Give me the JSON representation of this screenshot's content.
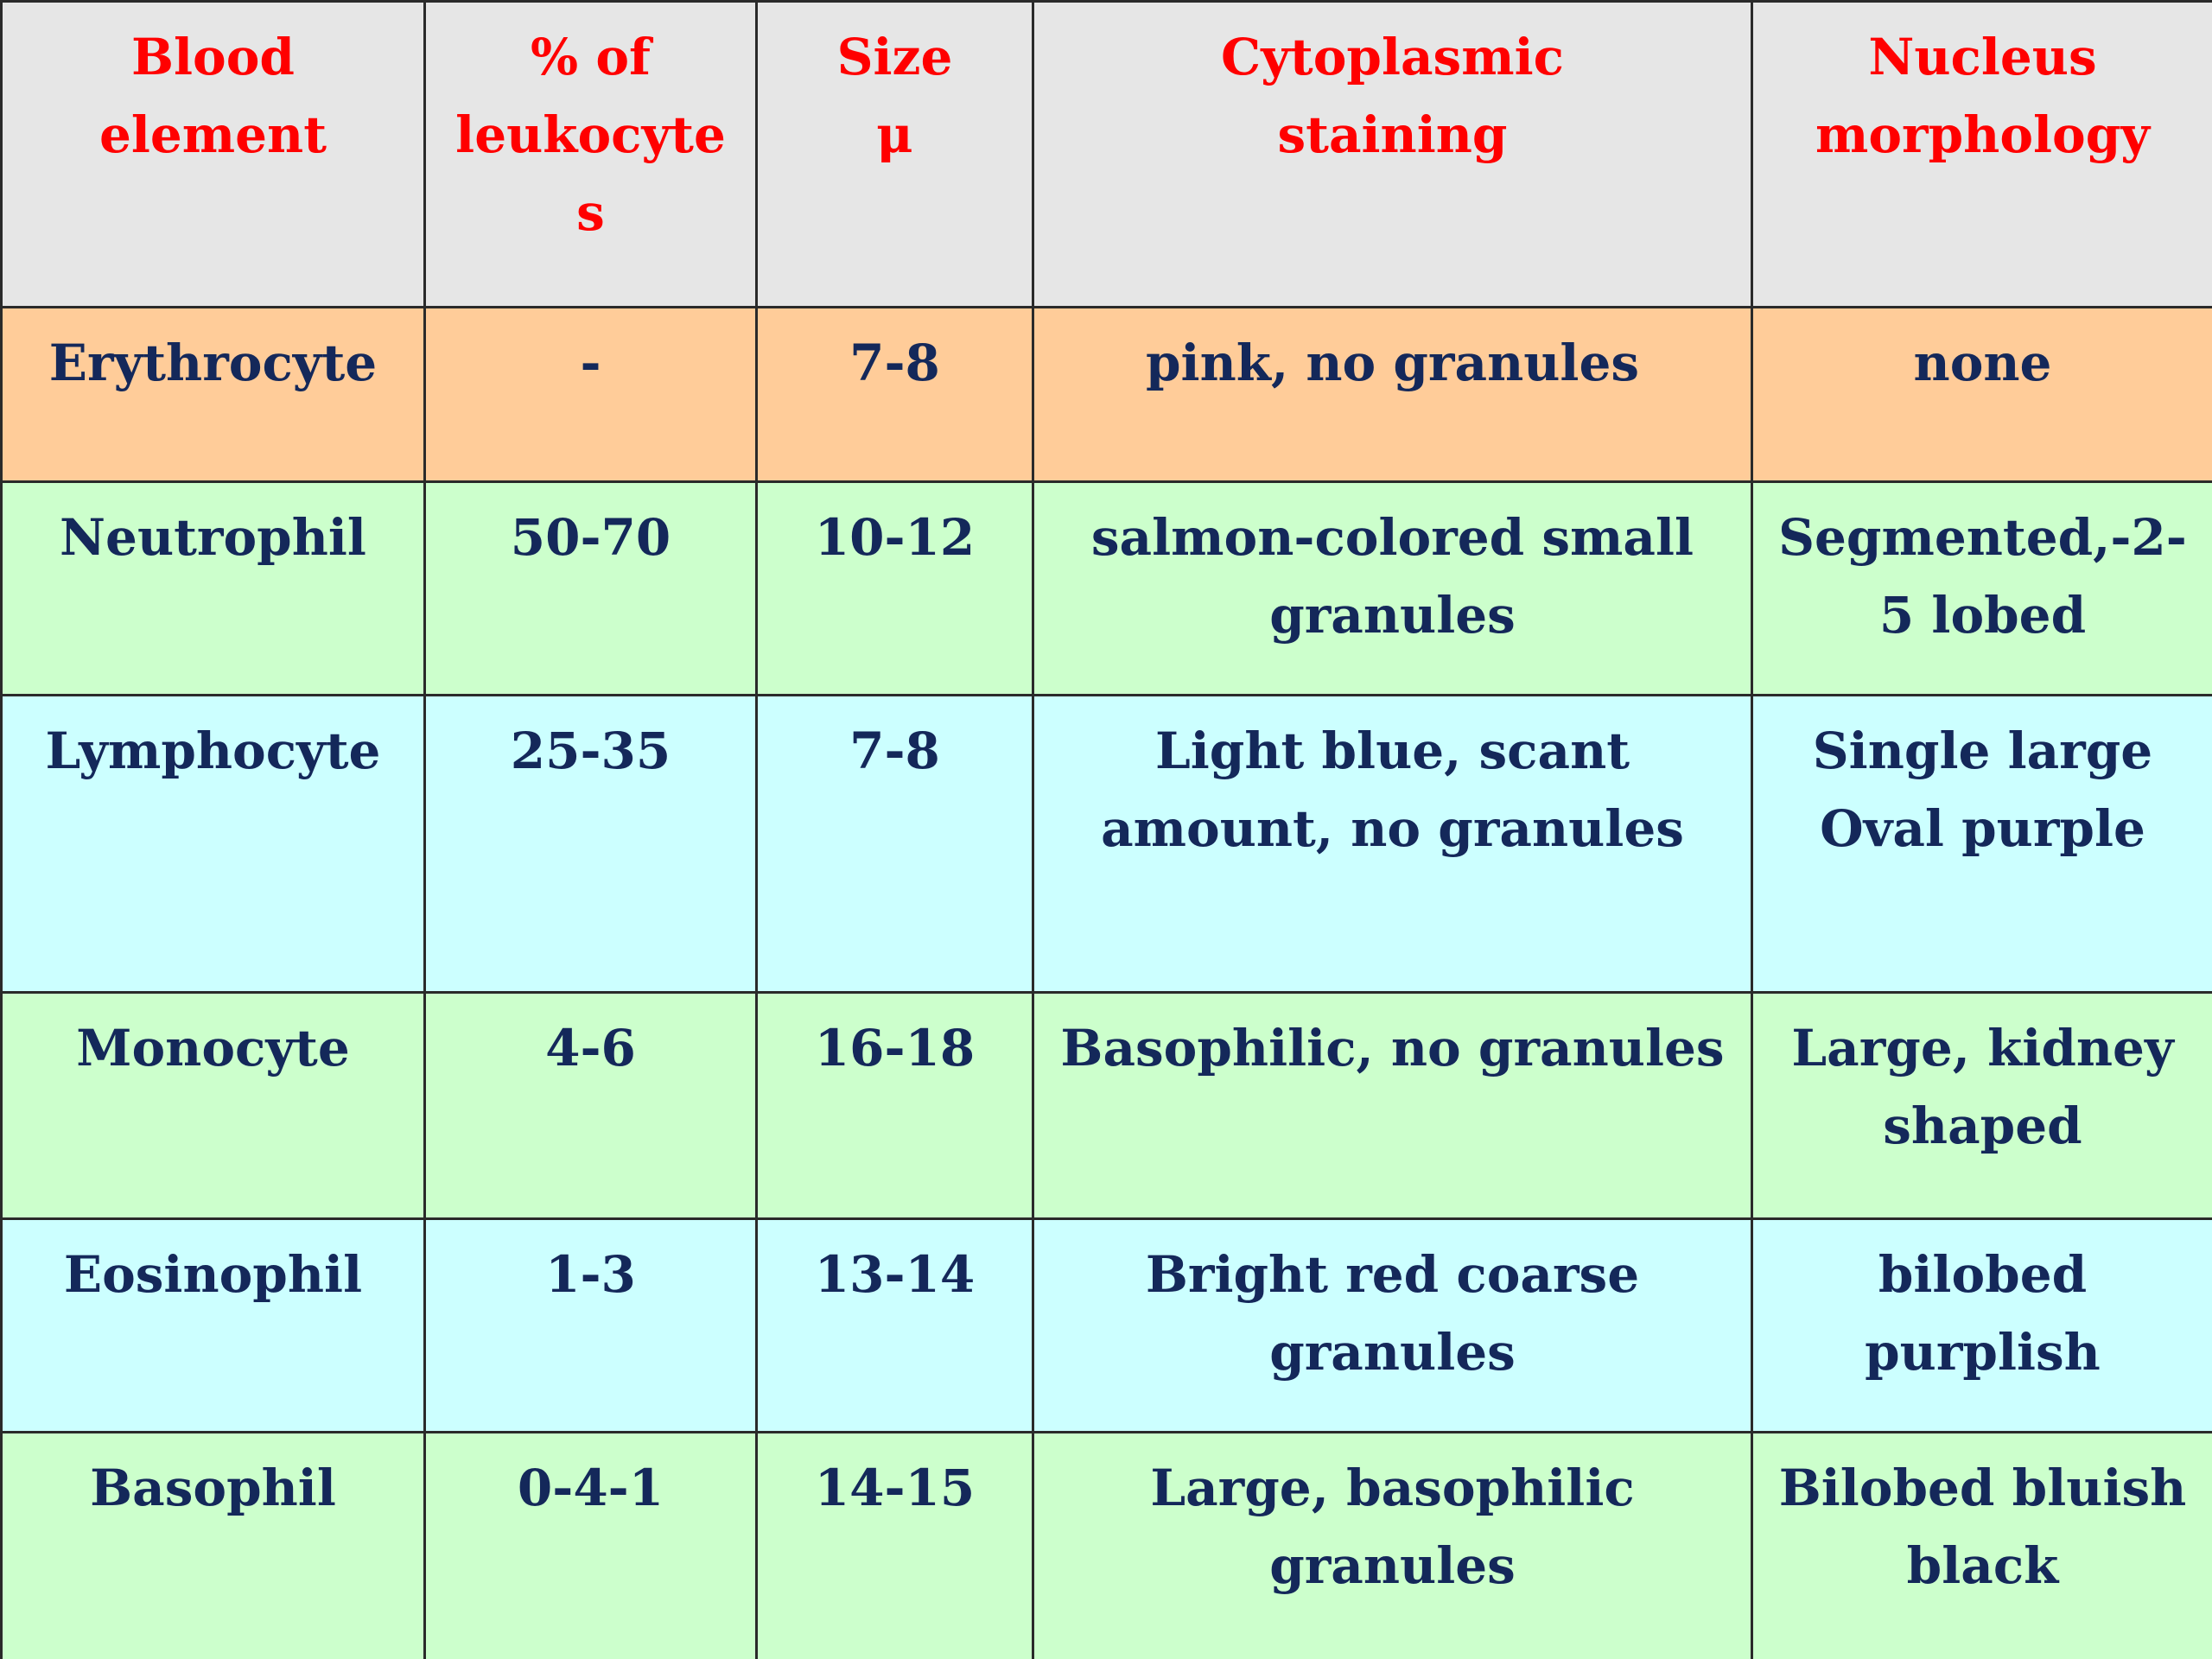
{
  "colors": {
    "header_bg": "#e6e6e6",
    "header_text": "#ff0000",
    "body_text": "#14285a",
    "erythrocyte_bg": "#ffcc99",
    "green_row_bg": "#ccffcc",
    "cyan_row_bg": "#ccffff"
  },
  "table": {
    "headers": [
      "Blood\nelement",
      "% of\nleukocyte\ns",
      "Size\nμ",
      "Cytoplasmic\nstaining",
      "Nucleus\nmorphology"
    ],
    "rows": [
      {
        "bg": "#ffcc99",
        "cells": [
          "Erythrocyte",
          "-",
          "7-8",
          "pink, no granules",
          "none"
        ]
      },
      {
        "bg": "#ccffcc",
        "cells": [
          "Neutrophil",
          "50-70",
          "10-12",
          "salmon-colored small\ngranules",
          "Segmented,-2-\n5 lobed"
        ]
      },
      {
        "bg": "#ccffff",
        "cells": [
          "Lymphocyte",
          "25-35",
          "7-8",
          "Light blue, scant\namount, no granules",
          "Single large\nOval purple"
        ]
      },
      {
        "bg": "#ccffcc",
        "cells": [
          "Monocyte",
          "4-6",
          "16-18",
          "Basophilic, no granules",
          "Large, kidney\nshaped"
        ]
      },
      {
        "bg": "#ccffff",
        "cells": [
          "Eosinophil",
          "1-3",
          "13-14",
          "Bright red coarse\ngranules",
          "bilobed\npurplish"
        ]
      },
      {
        "bg": "#ccffcc",
        "cells": [
          "Basophil",
          "0-4-1",
          "14-15",
          "Large, basophilic\ngranules",
          "Bilobed bluish\nblack"
        ]
      }
    ]
  }
}
